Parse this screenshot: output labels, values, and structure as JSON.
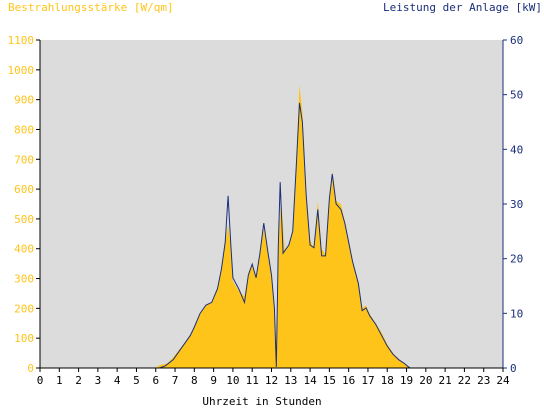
{
  "chart_data": {
    "type": "area",
    "y_left_label": "Bestrahlungsstärke [W/qm]",
    "y_right_label": "Leistung der Anlage [kW]",
    "xlabel": "Uhrzeit in Stunden",
    "xlim": [
      0,
      24
    ],
    "ylim_left": [
      0,
      1100
    ],
    "ylim_right": [
      0,
      60
    ],
    "x_ticks": [
      0,
      1,
      2,
      3,
      4,
      5,
      6,
      7,
      8,
      9,
      10,
      11,
      12,
      13,
      14,
      15,
      16,
      17,
      18,
      19,
      20,
      21,
      22,
      23,
      24
    ],
    "y_left_ticks": [
      0,
      100,
      200,
      300,
      400,
      500,
      600,
      700,
      800,
      900,
      1000,
      1100
    ],
    "y_right_ticks": [
      0,
      10,
      20,
      30,
      40,
      50,
      60
    ],
    "grid": false,
    "background_color": "#dcdcdc",
    "series": [
      {
        "name": "Bestrahlungsstärke",
        "axis": "left",
        "style": "filled-area",
        "color": "#ffc41a",
        "points": [
          [
            0,
            0
          ],
          [
            6.0,
            0
          ],
          [
            6.2,
            10
          ],
          [
            6.6,
            15
          ],
          [
            6.9,
            35
          ],
          [
            7.2,
            60
          ],
          [
            7.5,
            85
          ],
          [
            7.8,
            110
          ],
          [
            8.0,
            140
          ],
          [
            8.3,
            180
          ],
          [
            8.6,
            210
          ],
          [
            8.9,
            220
          ],
          [
            9.2,
            270
          ],
          [
            9.4,
            330
          ],
          [
            9.6,
            420
          ],
          [
            9.75,
            480
          ],
          [
            9.9,
            400
          ],
          [
            10.0,
            290
          ],
          [
            10.3,
            260
          ],
          [
            10.6,
            240
          ],
          [
            10.8,
            320
          ],
          [
            11.0,
            350
          ],
          [
            11.2,
            300
          ],
          [
            11.4,
            380
          ],
          [
            11.6,
            470
          ],
          [
            11.8,
            390
          ],
          [
            12.0,
            310
          ],
          [
            12.15,
            200
          ],
          [
            12.25,
            5
          ],
          [
            12.35,
            420
          ],
          [
            12.5,
            560
          ],
          [
            12.7,
            390
          ],
          [
            12.9,
            410
          ],
          [
            13.1,
            460
          ],
          [
            13.3,
            720
          ],
          [
            13.45,
            950
          ],
          [
            13.6,
            860
          ],
          [
            13.8,
            570
          ],
          [
            14.0,
            430
          ],
          [
            14.2,
            400
          ],
          [
            14.4,
            560
          ],
          [
            14.6,
            400
          ],
          [
            14.8,
            380
          ],
          [
            15.0,
            570
          ],
          [
            15.15,
            660
          ],
          [
            15.35,
            560
          ],
          [
            15.6,
            550
          ],
          [
            15.8,
            490
          ],
          [
            16.0,
            430
          ],
          [
            16.2,
            360
          ],
          [
            16.5,
            290
          ],
          [
            16.7,
            200
          ],
          [
            16.9,
            210
          ],
          [
            17.1,
            180
          ],
          [
            17.4,
            150
          ],
          [
            17.7,
            120
          ],
          [
            18.0,
            80
          ],
          [
            18.3,
            50
          ],
          [
            18.6,
            30
          ],
          [
            18.9,
            15
          ],
          [
            19.1,
            5
          ],
          [
            19.2,
            0
          ],
          [
            24,
            0
          ]
        ]
      },
      {
        "name": "Leistung",
        "axis": "right",
        "style": "line",
        "color": "#1a2f7a",
        "points": [
          [
            0,
            0
          ],
          [
            6.2,
            0
          ],
          [
            6.5,
            0.4
          ],
          [
            6.9,
            1.5
          ],
          [
            7.2,
            3.0
          ],
          [
            7.5,
            4.5
          ],
          [
            7.8,
            6.0
          ],
          [
            8.0,
            7.5
          ],
          [
            8.3,
            10.0
          ],
          [
            8.6,
            11.5
          ],
          [
            8.9,
            12.0
          ],
          [
            9.2,
            14.5
          ],
          [
            9.4,
            18.0
          ],
          [
            9.6,
            23.0
          ],
          [
            9.75,
            31.5
          ],
          [
            9.9,
            22.0
          ],
          [
            10.0,
            16.5
          ],
          [
            10.3,
            14.5
          ],
          [
            10.6,
            12.0
          ],
          [
            10.8,
            17.0
          ],
          [
            11.0,
            19.0
          ],
          [
            11.2,
            16.5
          ],
          [
            11.4,
            21.0
          ],
          [
            11.6,
            26.5
          ],
          [
            11.8,
            21.5
          ],
          [
            12.0,
            17.0
          ],
          [
            12.15,
            11.0
          ],
          [
            12.25,
            0.2
          ],
          [
            12.35,
            22.0
          ],
          [
            12.45,
            34.0
          ],
          [
            12.6,
            21.0
          ],
          [
            12.9,
            22.5
          ],
          [
            13.1,
            25.0
          ],
          [
            13.3,
            38.0
          ],
          [
            13.45,
            48.5
          ],
          [
            13.6,
            45.0
          ],
          [
            13.8,
            31.5
          ],
          [
            14.0,
            22.5
          ],
          [
            14.2,
            22.0
          ],
          [
            14.4,
            29.0
          ],
          [
            14.6,
            20.5
          ],
          [
            14.8,
            20.5
          ],
          [
            15.0,
            31.0
          ],
          [
            15.15,
            35.5
          ],
          [
            15.35,
            30.0
          ],
          [
            15.6,
            29.0
          ],
          [
            15.8,
            26.5
          ],
          [
            16.0,
            23.0
          ],
          [
            16.2,
            19.5
          ],
          [
            16.5,
            15.5
          ],
          [
            16.7,
            10.5
          ],
          [
            16.9,
            11.0
          ],
          [
            17.1,
            9.5
          ],
          [
            17.4,
            8.0
          ],
          [
            17.7,
            6.0
          ],
          [
            18.0,
            4.0
          ],
          [
            18.3,
            2.5
          ],
          [
            18.6,
            1.5
          ],
          [
            18.9,
            0.8
          ],
          [
            19.1,
            0.2
          ],
          [
            19.2,
            0
          ],
          [
            24,
            0
          ]
        ]
      }
    ]
  }
}
